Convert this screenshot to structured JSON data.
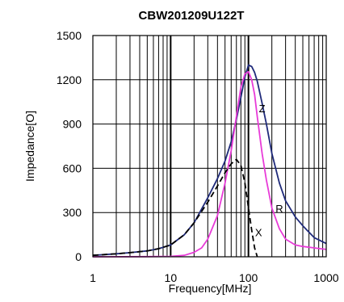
{
  "chart_data": {
    "type": "line",
    "title": "CBW201209U122T",
    "xlabel": "Frequency[MHz]",
    "ylabel": "Impedance[O]",
    "xscale": "log",
    "xlim": [
      1,
      1000
    ],
    "ylim": [
      0,
      1500
    ],
    "grid": true,
    "xticks": [
      1,
      10,
      100,
      1000
    ],
    "xtick_labels": [
      "1",
      "10",
      "100",
      "1000"
    ],
    "yticks": [
      0,
      300,
      600,
      900,
      1200,
      1500
    ],
    "ytick_labels": [
      "0",
      "300",
      "600",
      "900",
      "1200",
      "1500"
    ],
    "series": [
      {
        "name": "Z",
        "color": "#1f2a7a",
        "dash": "solid",
        "x": [
          1,
          2,
          3,
          5,
          7,
          10,
          15,
          20,
          30,
          40,
          50,
          60,
          70,
          80,
          90,
          100,
          110,
          120,
          130,
          150,
          170,
          200,
          250,
          300,
          400,
          500,
          700,
          1000
        ],
        "y": [
          10,
          20,
          28,
          40,
          55,
          80,
          150,
          230,
          400,
          530,
          650,
          780,
          930,
          1080,
          1220,
          1300,
          1290,
          1250,
          1190,
          1040,
          900,
          700,
          500,
          380,
          270,
          210,
          130,
          90
        ]
      },
      {
        "name": "R",
        "color": "#e83bd8",
        "dash": "solid",
        "x": [
          1,
          5,
          10,
          15,
          20,
          25,
          30,
          40,
          50,
          60,
          70,
          80,
          90,
          100,
          110,
          120,
          130,
          150,
          170,
          200,
          250,
          300,
          400,
          500,
          700,
          1000
        ],
        "y": [
          0,
          1,
          3,
          10,
          30,
          60,
          120,
          280,
          500,
          720,
          950,
          1150,
          1240,
          1255,
          1200,
          1100,
          950,
          700,
          520,
          330,
          190,
          120,
          80,
          70,
          60,
          50
        ]
      },
      {
        "name": "X",
        "color": "#000000",
        "dash": "dashed",
        "x": [
          1,
          2,
          3,
          5,
          7,
          10,
          15,
          20,
          30,
          40,
          50,
          60,
          70,
          80,
          90,
          100,
          110,
          120,
          130
        ],
        "y": [
          10,
          20,
          28,
          40,
          55,
          80,
          150,
          230,
          370,
          480,
          570,
          630,
          660,
          620,
          500,
          330,
          180,
          60,
          0
        ]
      }
    ],
    "annotations": [
      {
        "text": "Z",
        "x": 150,
        "y": 980
      },
      {
        "text": "R",
        "x": 250,
        "y": 300
      },
      {
        "text": "X",
        "x": 135,
        "y": 140
      }
    ]
  }
}
